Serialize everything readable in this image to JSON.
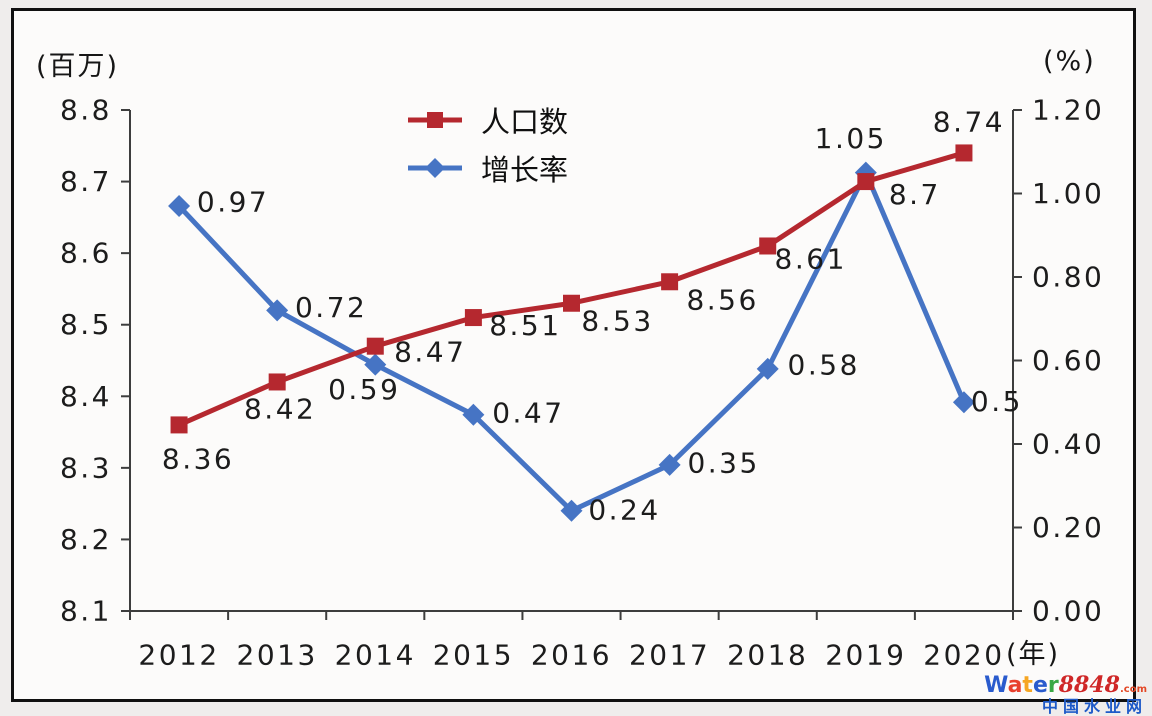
{
  "chart_data": {
    "type": "line",
    "categories": [
      "2012",
      "2013",
      "2014",
      "2015",
      "2016",
      "2017",
      "2018",
      "2019",
      "2020"
    ],
    "x_unit": "(年)",
    "left_axis": {
      "unit": "(百万)",
      "min": 8.1,
      "max": 8.8,
      "ticks": [
        "8.8",
        "8.7",
        "8.6",
        "8.5",
        "8.4",
        "8.3",
        "8.2",
        "8.1"
      ]
    },
    "right_axis": {
      "unit": "(%)",
      "min": 0.0,
      "max": 1.2,
      "ticks": [
        "1.20",
        "1.00",
        "0.80",
        "0.60",
        "0.40",
        "0.20",
        "0.00"
      ]
    },
    "grid": "off",
    "legend_position": "top-center",
    "series": [
      {
        "name": "增长率",
        "axis": "right",
        "color": "#4674c4",
        "marker": "diamond",
        "values": [
          0.97,
          0.72,
          0.59,
          0.47,
          0.24,
          0.35,
          0.58,
          1.05,
          0.5
        ],
        "labels": [
          "0.97",
          "0.72",
          "0.59",
          "0.47",
          "0.24",
          "0.35",
          "0.58",
          "1.05",
          "0.5"
        ],
        "label_offsets": [
          [
            54,
            -4
          ],
          [
            54,
            -3
          ],
          [
            -11,
            25
          ],
          [
            55,
            -2
          ],
          [
            53,
            -1
          ],
          [
            54,
            -2
          ],
          [
            56,
            -4
          ],
          [
            -15,
            -34
          ],
          [
            33,
            -1
          ]
        ]
      },
      {
        "name": "人口数",
        "axis": "left",
        "color": "#b5282f",
        "marker": "square",
        "values": [
          8.36,
          8.42,
          8.47,
          8.51,
          8.53,
          8.56,
          8.61,
          8.7,
          8.74
        ],
        "labels": [
          "8.36",
          "8.42",
          "8.47",
          "8.51",
          "8.53",
          "8.56",
          "8.61",
          "8.7",
          "8.74"
        ],
        "label_offsets": [
          [
            19,
            34
          ],
          [
            3,
            27
          ],
          [
            55,
            6
          ],
          [
            52,
            8
          ],
          [
            46,
            18
          ],
          [
            53,
            18
          ],
          [
            43,
            13
          ],
          [
            49,
            13
          ],
          [
            5,
            -31
          ]
        ]
      }
    ],
    "legend_order": [
      "人口数",
      "增长率"
    ]
  },
  "watermark": {
    "letters": [
      {
        "ch": "W",
        "color": "#2a5bcd"
      },
      {
        "ch": "a",
        "color": "#e8402d"
      },
      {
        "ch": "t",
        "color": "#f6a623"
      },
      {
        "ch": "e",
        "color": "#2a5bcd"
      },
      {
        "ch": "r",
        "color": "#3aa845"
      }
    ],
    "number": "8848",
    "tld": ".com",
    "site": "中国水业网"
  }
}
